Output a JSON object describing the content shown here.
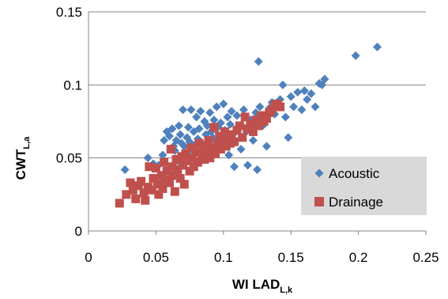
{
  "chart_data": {
    "type": "scatter",
    "xlabel": "WI LAD",
    "xlabel_sub": "L,k",
    "ylabel": "CWT",
    "ylabel_sub": "L,a",
    "xlim": [
      0,
      0.25
    ],
    "ylim": [
      0,
      0.15
    ],
    "x_ticks": [
      "0",
      "0.05",
      "0.1",
      "0.15",
      "0.2",
      "0.25"
    ],
    "y_ticks": [
      "0",
      "0.05",
      "0.1",
      "0.15"
    ],
    "grid": "horizontal",
    "legend_position": "bottom-right",
    "series": [
      {
        "name": "Acoustic",
        "marker": "diamond",
        "color": "#4F81BD",
        "points": [
          [
            0.027,
            0.042
          ],
          [
            0.044,
            0.05
          ],
          [
            0.048,
            0.046
          ],
          [
            0.052,
            0.045
          ],
          [
            0.055,
            0.052
          ],
          [
            0.056,
            0.062
          ],
          [
            0.058,
            0.068
          ],
          [
            0.06,
            0.065
          ],
          [
            0.062,
            0.07
          ],
          [
            0.063,
            0.058
          ],
          [
            0.064,
            0.055
          ],
          [
            0.065,
            0.062
          ],
          [
            0.066,
            0.048
          ],
          [
            0.067,
            0.072
          ],
          [
            0.068,
            0.066
          ],
          [
            0.069,
            0.06
          ],
          [
            0.07,
            0.083
          ],
          [
            0.071,
            0.058
          ],
          [
            0.072,
            0.05
          ],
          [
            0.073,
            0.064
          ],
          [
            0.074,
            0.071
          ],
          [
            0.075,
            0.061
          ],
          [
            0.076,
            0.083
          ],
          [
            0.077,
            0.055
          ],
          [
            0.078,
            0.068
          ],
          [
            0.079,
            0.059
          ],
          [
            0.08,
            0.078
          ],
          [
            0.081,
            0.063
          ],
          [
            0.082,
            0.07
          ],
          [
            0.083,
            0.082
          ],
          [
            0.084,
            0.06
          ],
          [
            0.085,
            0.052
          ],
          [
            0.086,
            0.075
          ],
          [
            0.087,
            0.066
          ],
          [
            0.088,
            0.072
          ],
          [
            0.089,
            0.058
          ],
          [
            0.09,
            0.081
          ],
          [
            0.091,
            0.068
          ],
          [
            0.092,
            0.064
          ],
          [
            0.093,
            0.076
          ],
          [
            0.094,
            0.062
          ],
          [
            0.095,
            0.085
          ],
          [
            0.096,
            0.071
          ],
          [
            0.097,
            0.058
          ],
          [
            0.098,
            0.074
          ],
          [
            0.099,
            0.065
          ],
          [
            0.1,
            0.087
          ],
          [
            0.101,
            0.069
          ],
          [
            0.102,
            0.06
          ],
          [
            0.103,
            0.078
          ],
          [
            0.104,
            0.052
          ],
          [
            0.105,
            0.073
          ],
          [
            0.106,
            0.082
          ],
          [
            0.107,
            0.066
          ],
          [
            0.108,
            0.044
          ],
          [
            0.11,
            0.079
          ],
          [
            0.111,
            0.071
          ],
          [
            0.113,
            0.056
          ],
          [
            0.115,
            0.083
          ],
          [
            0.117,
            0.068
          ],
          [
            0.118,
            0.045
          ],
          [
            0.12,
            0.076
          ],
          [
            0.122,
            0.062
          ],
          [
            0.124,
            0.081
          ],
          [
            0.125,
            0.042
          ],
          [
            0.126,
            0.116
          ],
          [
            0.127,
            0.085
          ],
          [
            0.129,
            0.072
          ],
          [
            0.13,
            0.078
          ],
          [
            0.132,
            0.058
          ],
          [
            0.134,
            0.084
          ],
          [
            0.136,
            0.088
          ],
          [
            0.138,
            0.08
          ],
          [
            0.14,
            0.086
          ],
          [
            0.142,
            0.09
          ],
          [
            0.144,
            0.1
          ],
          [
            0.146,
            0.078
          ],
          [
            0.148,
            0.064
          ],
          [
            0.15,
            0.092
          ],
          [
            0.152,
            0.085
          ],
          [
            0.155,
            0.095
          ],
          [
            0.158,
            0.083
          ],
          [
            0.16,
            0.096
          ],
          [
            0.162,
            0.09
          ],
          [
            0.165,
            0.094
          ],
          [
            0.168,
            0.085
          ],
          [
            0.171,
            0.101
          ],
          [
            0.173,
            0.1
          ],
          [
            0.175,
            0.104
          ],
          [
            0.198,
            0.12
          ],
          [
            0.214,
            0.126
          ]
        ]
      },
      {
        "name": "Drainage",
        "marker": "square",
        "color": "#C0504D",
        "points": [
          [
            0.023,
            0.019
          ],
          [
            0.028,
            0.025
          ],
          [
            0.031,
            0.033
          ],
          [
            0.033,
            0.028
          ],
          [
            0.035,
            0.022
          ],
          [
            0.037,
            0.031
          ],
          [
            0.039,
            0.034
          ],
          [
            0.041,
            0.026
          ],
          [
            0.042,
            0.021
          ],
          [
            0.044,
            0.03
          ],
          [
            0.045,
            0.044
          ],
          [
            0.047,
            0.028
          ],
          [
            0.048,
            0.036
          ],
          [
            0.05,
            0.043
          ],
          [
            0.051,
            0.032
          ],
          [
            0.052,
            0.025
          ],
          [
            0.054,
            0.038
          ],
          [
            0.055,
            0.029
          ],
          [
            0.056,
            0.047
          ],
          [
            0.057,
            0.035
          ],
          [
            0.058,
            0.041
          ],
          [
            0.06,
            0.033
          ],
          [
            0.061,
            0.056
          ],
          [
            0.062,
            0.044
          ],
          [
            0.063,
            0.038
          ],
          [
            0.064,
            0.027
          ],
          [
            0.065,
            0.049
          ],
          [
            0.066,
            0.042
          ],
          [
            0.068,
            0.036
          ],
          [
            0.069,
            0.051
          ],
          [
            0.07,
            0.045
          ],
          [
            0.071,
            0.032
          ],
          [
            0.072,
            0.053
          ],
          [
            0.073,
            0.048
          ],
          [
            0.075,
            0.041
          ],
          [
            0.076,
            0.057
          ],
          [
            0.077,
            0.05
          ],
          [
            0.078,
            0.044
          ],
          [
            0.08,
            0.054
          ],
          [
            0.081,
            0.047
          ],
          [
            0.082,
            0.06
          ],
          [
            0.084,
            0.052
          ],
          [
            0.085,
            0.058
          ],
          [
            0.086,
            0.049
          ],
          [
            0.088,
            0.055
          ],
          [
            0.089,
            0.062
          ],
          [
            0.09,
            0.05
          ],
          [
            0.092,
            0.057
          ],
          [
            0.093,
            0.071
          ],
          [
            0.094,
            0.053
          ],
          [
            0.096,
            0.06
          ],
          [
            0.097,
            0.065
          ],
          [
            0.098,
            0.056
          ],
          [
            0.1,
            0.062
          ],
          [
            0.101,
            0.068
          ],
          [
            0.102,
            0.058
          ],
          [
            0.104,
            0.064
          ],
          [
            0.105,
            0.06
          ],
          [
            0.106,
            0.066
          ],
          [
            0.108,
            0.061
          ],
          [
            0.11,
            0.069
          ],
          [
            0.112,
            0.072
          ],
          [
            0.114,
            0.064
          ],
          [
            0.116,
            0.078
          ],
          [
            0.118,
            0.07
          ],
          [
            0.12,
            0.073
          ],
          [
            0.122,
            0.068
          ],
          [
            0.124,
            0.076
          ],
          [
            0.126,
            0.072
          ],
          [
            0.128,
            0.079
          ],
          [
            0.13,
            0.075
          ],
          [
            0.132,
            0.077
          ],
          [
            0.134,
            0.081
          ],
          [
            0.136,
            0.083
          ],
          [
            0.138,
            0.086
          ],
          [
            0.14,
            0.087
          ],
          [
            0.142,
            0.085
          ]
        ]
      }
    ]
  }
}
